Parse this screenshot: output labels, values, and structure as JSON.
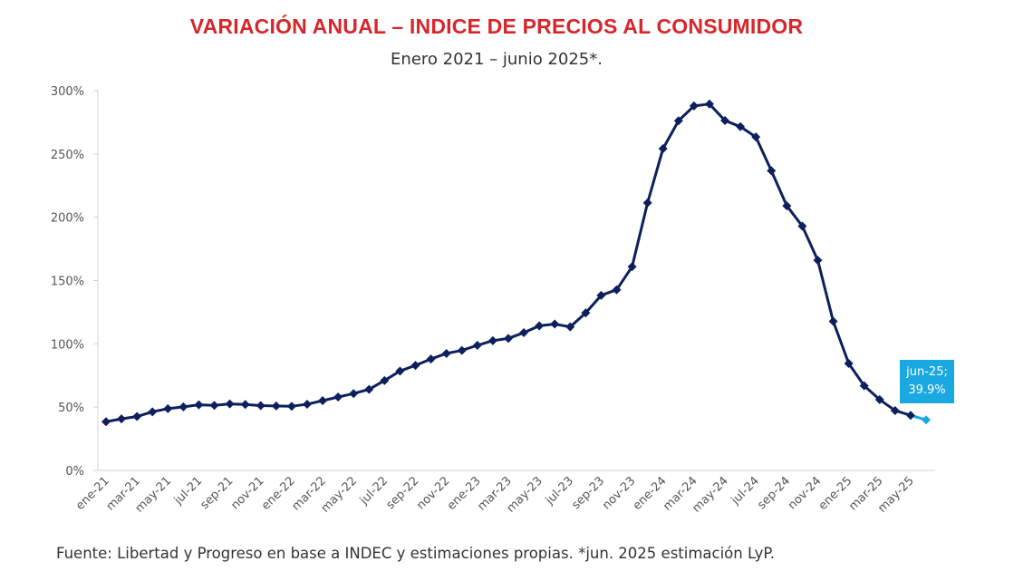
{
  "chart_data": {
    "type": "line",
    "title": "VARIACIÓN ANUAL – INDICE DE PRECIOS AL CONSUMIDOR",
    "subtitle": "Enero 2021 – junio 2025*.",
    "footer": "Fuente: Libertad y Progreso en base a INDEC y estimaciones propias. *jun. 2025 estimación LyP.",
    "xlabel": "",
    "ylabel": "",
    "ylim": [
      0,
      300
    ],
    "yticks": [
      "0%",
      "50%",
      "100%",
      "150%",
      "200%",
      "250%",
      "300%"
    ],
    "xtick_labels": [
      "ene-21",
      "mar-21",
      "may-21",
      "jul-21",
      "sep-21",
      "nov-21",
      "ene-22",
      "mar-22",
      "may-22",
      "jul-22",
      "sep-22",
      "nov-22",
      "ene-23",
      "mar-23",
      "may-23",
      "jul-23",
      "sep-23",
      "nov-23",
      "ene-24",
      "mar-24",
      "may-24",
      "jul-24",
      "sep-24",
      "nov-24",
      "ene-25",
      "mar-25",
      "may-25"
    ],
    "grid": false,
    "line_color": "#0d1f5c",
    "highlight_color": "#1aa8e0",
    "series": [
      {
        "values": [
          38.5,
          40.7,
          42.6,
          46.3,
          48.8,
          50.2,
          51.8,
          51.4,
          52.5,
          52.1,
          51.2,
          50.9,
          50.7,
          52.3,
          55.1,
          58.0,
          60.7,
          64.0,
          71.0,
          78.5,
          83.0,
          88.0,
          92.4,
          94.8,
          98.8,
          102.5,
          104.3,
          108.8,
          114.2,
          115.6,
          113.4,
          124.4,
          138.3,
          142.7,
          160.9,
          211.4,
          254.2,
          276.2,
          287.9,
          289.4,
          276.4,
          271.5,
          263.4,
          236.7,
          209.0,
          193.0,
          166.0,
          117.8,
          84.5,
          66.9,
          55.9,
          47.3,
          43.5,
          39.9
        ]
      }
    ],
    "annotation": {
      "line1": "jun-25;",
      "line2": "39.9%"
    }
  }
}
